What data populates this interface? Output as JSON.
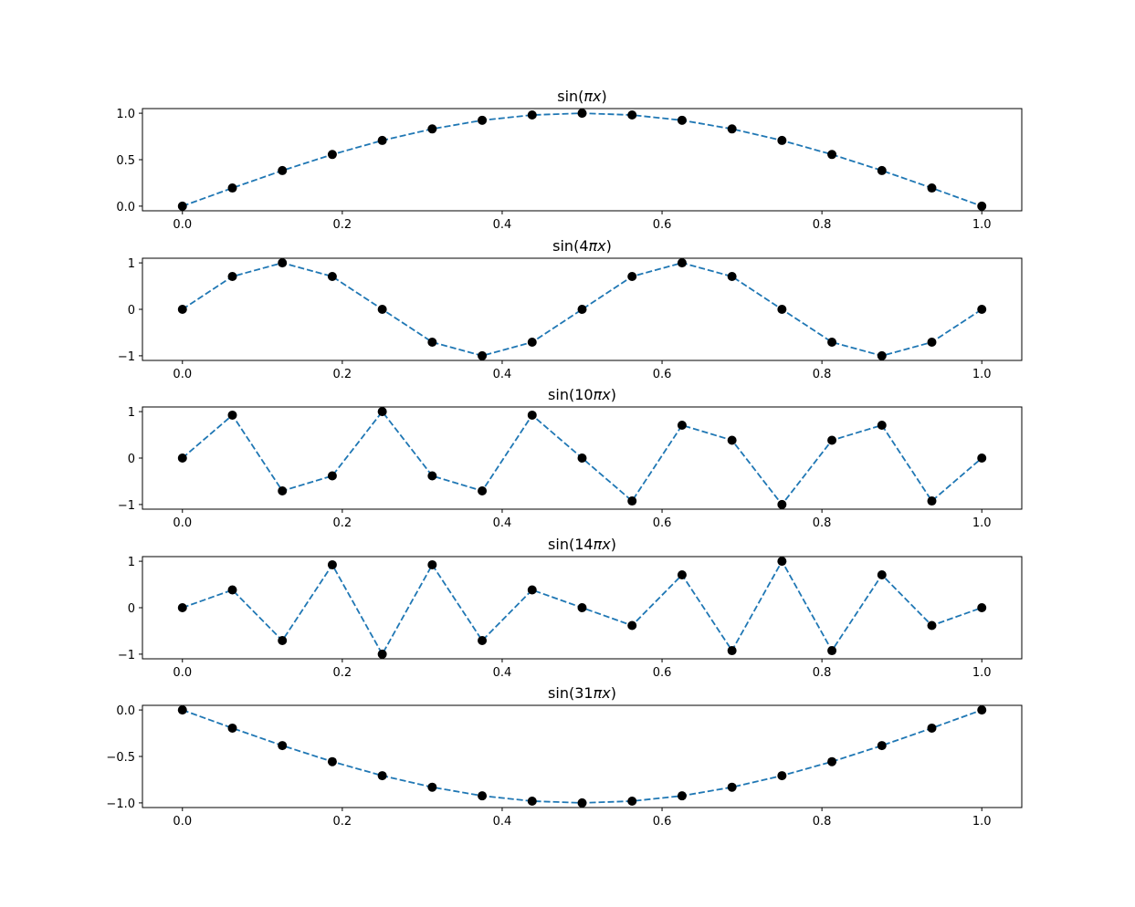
{
  "chart_data": [
    {
      "type": "line",
      "title_prefix": "sin(",
      "title_k": "",
      "title_suffix": ")",
      "x": [
        0.0,
        0.0625,
        0.125,
        0.1875,
        0.25,
        0.3125,
        0.375,
        0.4375,
        0.5,
        0.5625,
        0.625,
        0.6875,
        0.75,
        0.8125,
        0.875,
        0.9375,
        1.0
      ],
      "y": [
        0.0,
        0.195,
        0.383,
        0.556,
        0.707,
        0.831,
        0.924,
        0.981,
        1.0,
        0.981,
        0.924,
        0.831,
        0.707,
        0.556,
        0.383,
        0.195,
        0.0
      ],
      "xlim": [
        -0.05,
        1.05
      ],
      "ylim": [
        -0.05,
        1.05
      ],
      "xticks": [
        0.0,
        0.2,
        0.4,
        0.6,
        0.8,
        1.0
      ],
      "xtick_labels": [
        "0.0",
        "0.2",
        "0.4",
        "0.6",
        "0.8",
        "1.0"
      ],
      "yticks": [
        0.0,
        0.5,
        1.0
      ],
      "ytick_labels": [
        "0.0",
        "0.5",
        "1.0"
      ],
      "grid": false,
      "line_style": "dashed",
      "line_color": "#1f77b4",
      "marker_color": "#000000"
    },
    {
      "type": "line",
      "title_prefix": "sin(",
      "title_k": "4",
      "title_suffix": ")",
      "x": [
        0.0,
        0.0625,
        0.125,
        0.1875,
        0.25,
        0.3125,
        0.375,
        0.4375,
        0.5,
        0.5625,
        0.625,
        0.6875,
        0.75,
        0.8125,
        0.875,
        0.9375,
        1.0
      ],
      "y": [
        0.0,
        0.707,
        1.0,
        0.707,
        0.0,
        -0.707,
        -1.0,
        -0.707,
        0.0,
        0.707,
        1.0,
        0.707,
        0.0,
        -0.707,
        -1.0,
        -0.707,
        0.0
      ],
      "xlim": [
        -0.05,
        1.05
      ],
      "ylim": [
        -1.1,
        1.1
      ],
      "xticks": [
        0.0,
        0.2,
        0.4,
        0.6,
        0.8,
        1.0
      ],
      "xtick_labels": [
        "0.0",
        "0.2",
        "0.4",
        "0.6",
        "0.8",
        "1.0"
      ],
      "yticks": [
        -1,
        0,
        1
      ],
      "ytick_labels": [
        "−1",
        "0",
        "1"
      ],
      "grid": false,
      "line_style": "dashed",
      "line_color": "#1f77b4",
      "marker_color": "#000000"
    },
    {
      "type": "line",
      "title_prefix": "sin(",
      "title_k": "10",
      "title_suffix": ")",
      "x": [
        0.0,
        0.0625,
        0.125,
        0.1875,
        0.25,
        0.3125,
        0.375,
        0.4375,
        0.5,
        0.5625,
        0.625,
        0.6875,
        0.75,
        0.8125,
        0.875,
        0.9375,
        1.0
      ],
      "y": [
        0.0,
        0.924,
        -0.707,
        -0.383,
        1.0,
        -0.383,
        -0.707,
        0.924,
        0.0,
        -0.924,
        0.707,
        0.383,
        -1.0,
        0.383,
        0.707,
        -0.924,
        0.0
      ],
      "xlim": [
        -0.05,
        1.05
      ],
      "ylim": [
        -1.1,
        1.1
      ],
      "xticks": [
        0.0,
        0.2,
        0.4,
        0.6,
        0.8,
        1.0
      ],
      "xtick_labels": [
        "0.0",
        "0.2",
        "0.4",
        "0.6",
        "0.8",
        "1.0"
      ],
      "yticks": [
        -1,
        0,
        1
      ],
      "ytick_labels": [
        "−1",
        "0",
        "1"
      ],
      "grid": false,
      "line_style": "dashed",
      "line_color": "#1f77b4",
      "marker_color": "#000000"
    },
    {
      "type": "line",
      "title_prefix": "sin(",
      "title_k": "14",
      "title_suffix": ")",
      "x": [
        0.0,
        0.0625,
        0.125,
        0.1875,
        0.25,
        0.3125,
        0.375,
        0.4375,
        0.5,
        0.5625,
        0.625,
        0.6875,
        0.75,
        0.8125,
        0.875,
        0.9375,
        1.0
      ],
      "y": [
        0.0,
        0.383,
        -0.707,
        0.924,
        -1.0,
        0.924,
        -0.707,
        0.383,
        0.0,
        -0.383,
        0.707,
        -0.924,
        1.0,
        -0.924,
        0.707,
        -0.383,
        0.0
      ],
      "xlim": [
        -0.05,
        1.05
      ],
      "ylim": [
        -1.1,
        1.1
      ],
      "xticks": [
        0.0,
        0.2,
        0.4,
        0.6,
        0.8,
        1.0
      ],
      "xtick_labels": [
        "0.0",
        "0.2",
        "0.4",
        "0.6",
        "0.8",
        "1.0"
      ],
      "yticks": [
        -1,
        0,
        1
      ],
      "ytick_labels": [
        "−1",
        "0",
        "1"
      ],
      "grid": false,
      "line_style": "dashed",
      "line_color": "#1f77b4",
      "marker_color": "#000000"
    },
    {
      "type": "line",
      "title_prefix": "sin(",
      "title_k": "31",
      "title_suffix": ")",
      "x": [
        0.0,
        0.0625,
        0.125,
        0.1875,
        0.25,
        0.3125,
        0.375,
        0.4375,
        0.5,
        0.5625,
        0.625,
        0.6875,
        0.75,
        0.8125,
        0.875,
        0.9375,
        1.0
      ],
      "y": [
        0.0,
        -0.195,
        -0.383,
        -0.556,
        -0.707,
        -0.831,
        -0.924,
        -0.981,
        -1.0,
        -0.981,
        -0.924,
        -0.831,
        -0.707,
        -0.556,
        -0.383,
        -0.195,
        0.0
      ],
      "xlim": [
        -0.05,
        1.05
      ],
      "ylim": [
        -1.05,
        0.05
      ],
      "xticks": [
        0.0,
        0.2,
        0.4,
        0.6,
        0.8,
        1.0
      ],
      "xtick_labels": [
        "0.0",
        "0.2",
        "0.4",
        "0.6",
        "0.8",
        "1.0"
      ],
      "yticks": [
        -1.0,
        -0.5,
        0.0
      ],
      "ytick_labels": [
        "−1.0",
        "−0.5",
        "0.0"
      ],
      "grid": false,
      "line_style": "dashed",
      "line_color": "#1f77b4",
      "marker_color": "#000000"
    }
  ]
}
